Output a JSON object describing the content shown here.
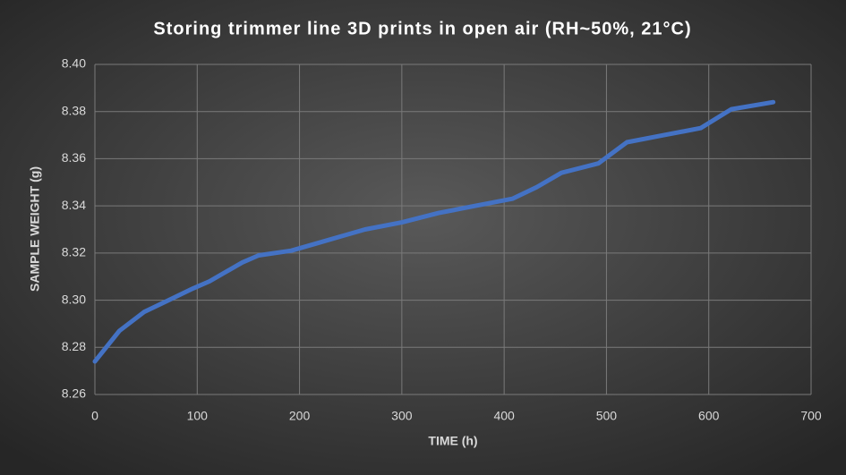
{
  "chart_data": {
    "type": "line",
    "title": "Storing trimmer line 3D prints in open air (RH~50%, 21°C)",
    "x_label": "TIME (h)",
    "y_label": "SAMPLE WEIGHT (g)",
    "x": [
      0,
      24,
      48,
      72,
      96,
      112,
      144,
      160,
      192,
      216,
      240,
      264,
      300,
      336,
      372,
      408,
      432,
      456,
      492,
      520,
      556,
      592,
      622,
      663
    ],
    "series": [
      {
        "color": "#4472c4",
        "values": [
          8.274,
          8.287,
          8.295,
          8.3,
          8.305,
          8.308,
          8.316,
          8.319,
          8.321,
          8.324,
          8.327,
          8.33,
          8.333,
          8.337,
          8.34,
          8.343,
          8.348,
          8.354,
          8.358,
          8.367,
          8.37,
          8.373,
          8.381,
          8.384
        ]
      }
    ],
    "xlim": [
      0,
      700
    ],
    "xticks": [
      0,
      100,
      200,
      300,
      400,
      500,
      600,
      700
    ],
    "ylim": [
      8.26,
      8.4
    ],
    "yticks": [
      8.26,
      8.28,
      {
        "value": 8.3,
        "label": "8.30"
      },
      8.32,
      8.34,
      8.36,
      8.38,
      {
        "value": 8.4,
        "label": "8.40"
      }
    ],
    "grid": true
  }
}
